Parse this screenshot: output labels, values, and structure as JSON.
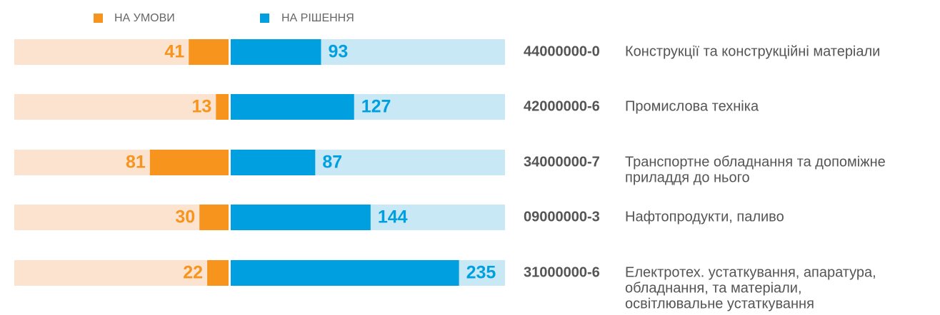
{
  "chart_data": {
    "type": "diverging-bar",
    "series": [
      {
        "name": "НА УМОВИ",
        "color": "#f7941d",
        "track_color": "#fbe3cf",
        "values": [
          41,
          13,
          81,
          30,
          22
        ]
      },
      {
        "name": "НА РІШЕННЯ",
        "color": "#00a0e0",
        "track_color": "#c9e8f6",
        "values": [
          93,
          127,
          87,
          144,
          235
        ]
      }
    ],
    "codes": [
      "44000000-0",
      "42000000-6",
      "34000000-7",
      "09000000-3",
      "31000000-6"
    ],
    "names": [
      [
        "Конструкції та конструкційні матеріали"
      ],
      [
        "Промислова техніка"
      ],
      [
        "Транспортне обладнання та допоміжне",
        "приладдя до нього"
      ],
      [
        "Нафтопродукти, паливо"
      ],
      [
        "Електротех. устаткування, апаратура,",
        "обладнання, та матеріали,",
        "освітлювальне устаткування"
      ]
    ]
  }
}
